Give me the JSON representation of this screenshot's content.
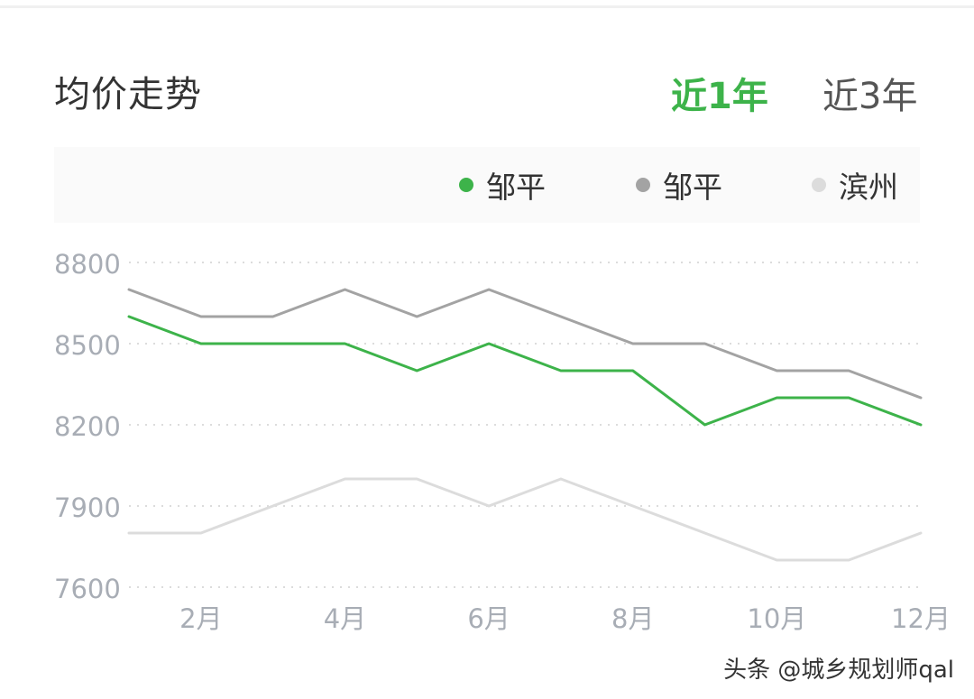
{
  "header": {
    "title": "均价走势",
    "tabs": [
      {
        "label": "近1年",
        "active": true
      },
      {
        "label": "近3年",
        "active": false
      }
    ]
  },
  "colors": {
    "accent": "#3db34a",
    "series_zouping_green": "#3db34a",
    "series_zouping_gray": "#a3a3a3",
    "series_binzhou": "#dcdcdc",
    "tick_text": "#a8adb5",
    "grid": "#dcdcdc"
  },
  "watermark": "头条 @城乡规划师qal",
  "chart_data": {
    "type": "line",
    "x": [
      1,
      2,
      3,
      4,
      5,
      6,
      7,
      8,
      9,
      10,
      11,
      12
    ],
    "x_tick_labels": [
      {
        "x": 2,
        "label": "2月"
      },
      {
        "x": 4,
        "label": "4月"
      },
      {
        "x": 6,
        "label": "6月"
      },
      {
        "x": 8,
        "label": "8月"
      },
      {
        "x": 10,
        "label": "10月"
      },
      {
        "x": 12,
        "label": "12月"
      }
    ],
    "yticks": [
      7600,
      7900,
      8200,
      8500,
      8800
    ],
    "ylim": [
      7600,
      8800
    ],
    "xlim": [
      1,
      12
    ],
    "grid": "horizontal dotted",
    "legend_position": "top-right",
    "series": [
      {
        "name": "邹平",
        "color": "#3db34a",
        "values": [
          8600,
          8500,
          8500,
          8500,
          8400,
          8500,
          8400,
          8400,
          8200,
          8300,
          8300,
          8200
        ]
      },
      {
        "name": "邹平",
        "color": "#a3a3a3",
        "values": [
          8700,
          8600,
          8600,
          8700,
          8600,
          8700,
          8600,
          8500,
          8500,
          8400,
          8400,
          8300
        ]
      },
      {
        "name": "滨州",
        "color": "#dcdcdc",
        "values": [
          7800,
          7800,
          7900,
          8000,
          8000,
          7900,
          8000,
          7900,
          7800,
          7700,
          7700,
          7800
        ]
      }
    ]
  }
}
